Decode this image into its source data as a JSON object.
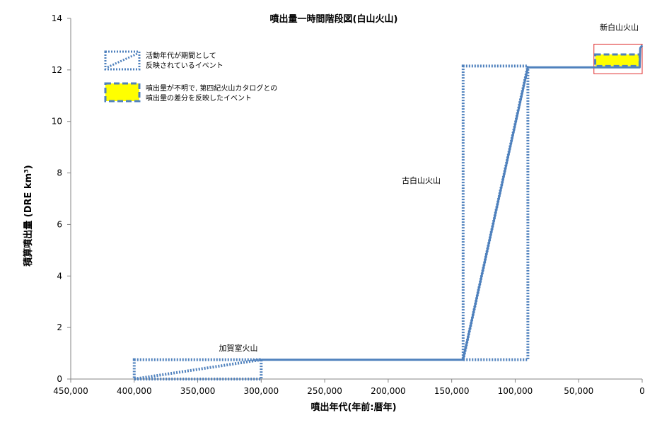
{
  "chart_data": {
    "type": "line",
    "title": "噴出量一時間階段図(白山火山)",
    "xlabel": "噴出年代(年前:暦年)",
    "ylabel": "積算噴出量 (DRE km³)",
    "xlim": [
      450000,
      0
    ],
    "ylim": [
      0,
      14
    ],
    "x_reversed": true,
    "grid": false,
    "xtick_labels": [
      "450,000",
      "400,000",
      "350,000",
      "300,000",
      "250,000",
      "200,000",
      "150,000",
      "100,000",
      "50,000",
      "0"
    ],
    "xtick_values": [
      450000,
      400000,
      350000,
      300000,
      250000,
      200000,
      150000,
      100000,
      50000,
      0
    ],
    "ytick_labels": [
      "0",
      "2",
      "4",
      "6",
      "8",
      "10",
      "12",
      "14"
    ],
    "ytick_values": [
      0,
      2,
      4,
      6,
      8,
      10,
      12,
      14
    ],
    "series": [
      {
        "style": "solid",
        "color": "#4f81bd",
        "points": [
          [
            300000,
            0.75
          ],
          [
            141000,
            0.75
          ],
          [
            141000,
            0.76
          ],
          [
            90000,
            12.1
          ],
          [
            2000,
            12.1
          ],
          [
            1500,
            12.85
          ],
          [
            0,
            12.95
          ]
        ]
      }
    ],
    "period_boxes": [
      {
        "x0": 400000,
        "x1": 300000,
        "y0": 0,
        "y1": 0.75,
        "diagonal": true
      },
      {
        "x0": 141000,
        "x1": 90000,
        "y0": 0.75,
        "y1": 12.15,
        "diagonal": true
      }
    ],
    "difference_boxes": [
      {
        "x0": 37000,
        "x1": 2000,
        "y0": 12.15,
        "y1": 12.6
      }
    ],
    "highlight_box": {
      "x0": 38000,
      "x1": 0,
      "y0": 11.85,
      "y1": 13.0,
      "color": "#e03030"
    },
    "annotations": [
      {
        "text": "加賀室火山",
        "x": 318000,
        "y": 1.1
      },
      {
        "text": "古白山火山",
        "x": 174000,
        "y": 7.6
      },
      {
        "text": "新白山火山",
        "x": 18000,
        "y": 13.55
      }
    ],
    "legend": {
      "position": "top-left",
      "entries": [
        {
          "label_line1": "活動年代が期間として",
          "label_line2": "反映されているイベント",
          "kind": "period"
        },
        {
          "label_line1": "噴出量が不明で, 第四紀火山カタログとの",
          "label_line2": "噴出量の差分を反映したイベント",
          "kind": "difference"
        }
      ]
    },
    "colors": {
      "series": "#4f81bd",
      "fill": "#ffff00",
      "highlight": "#e03030",
      "axis": "#868686"
    }
  }
}
